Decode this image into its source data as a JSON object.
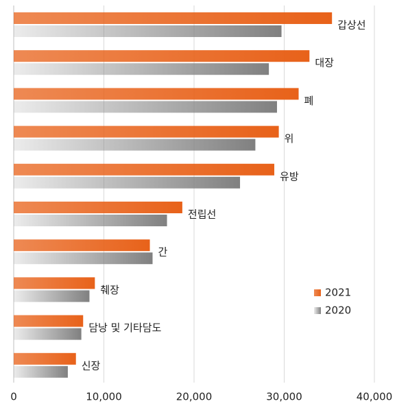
{
  "chart_data": {
    "type": "barh",
    "categories": [
      "갑상선",
      "대장",
      "폐",
      "위",
      "유방",
      "전립선",
      "간",
      "췌장",
      "담낭 및 기타담도",
      "신장"
    ],
    "series": [
      {
        "name": "2021",
        "color": "#e8621a",
        "values": [
          35300,
          32800,
          31600,
          29400,
          28900,
          18700,
          15100,
          9000,
          7700,
          6900
        ]
      },
      {
        "name": "2020",
        "color": "#808080",
        "values": [
          29700,
          28300,
          29200,
          26800,
          25100,
          17000,
          15400,
          8400,
          7500,
          6000
        ]
      }
    ],
    "xlim": [
      0,
      40000
    ],
    "xticks": [
      0,
      {
        "value": 10000,
        "label": "10,000"
      },
      {
        "value": 20000,
        "label": "20,000"
      },
      {
        "value": 30000,
        "label": "30,000"
      },
      {
        "value": 40000,
        "label": "40,000"
      }
    ],
    "grid": true,
    "legend": "lower right"
  }
}
